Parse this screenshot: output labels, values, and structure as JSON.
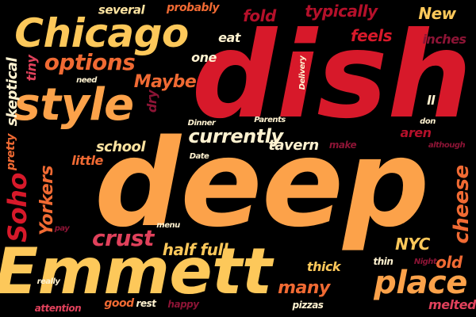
{
  "words": {
    "dish": "dish",
    "deep": "deep",
    "emmett": "Emmett",
    "chicago": "Chicago",
    "style": "style",
    "place": "place",
    "options": "options",
    "maybe": "Maybe",
    "currently": "currently",
    "crust": "crust",
    "soho": "Soho",
    "yorkers": "Yorkers",
    "half_full": "half full",
    "new": "New",
    "typically": "typically",
    "feels": "feels",
    "inches": "inches",
    "fold": "fold",
    "several": "several",
    "probably": "probably",
    "eat": "eat",
    "one": "one",
    "need": "need",
    "delivery": "Delivery",
    "skeptical": "skeptical",
    "tiny": "tiny",
    "pretty": "pretty",
    "dry": "dry",
    "school": "school",
    "little": "little",
    "dinner": "Dinner",
    "parents": "Parents",
    "tavern": "tavern",
    "make": "make",
    "date": "Date",
    "aren": "aren",
    "don": "don",
    "although": "although",
    "ll": "ll",
    "cheese": "cheese",
    "nyc": "NYC",
    "old": "old",
    "thin": "thin",
    "night": "Night",
    "thick": "thick",
    "many": "many",
    "pizzas": "pizzas",
    "melted": "melted",
    "menu": "menu",
    "pay": "pay",
    "really": "really",
    "attention": "attention",
    "good": "good",
    "rest": "rest",
    "happy": "happy"
  }
}
